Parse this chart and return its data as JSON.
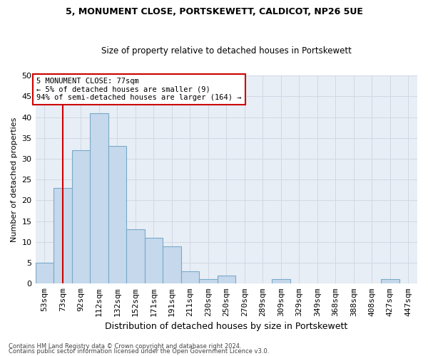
{
  "title1": "5, MONUMENT CLOSE, PORTSKEWETT, CALDICOT, NP26 5UE",
  "title2": "Size of property relative to detached houses in Portskewett",
  "xlabel": "Distribution of detached houses by size in Portskewett",
  "ylabel": "Number of detached properties",
  "categories": [
    "53sqm",
    "73sqm",
    "92sqm",
    "112sqm",
    "132sqm",
    "152sqm",
    "171sqm",
    "191sqm",
    "211sqm",
    "230sqm",
    "250sqm",
    "270sqm",
    "289sqm",
    "309sqm",
    "329sqm",
    "349sqm",
    "368sqm",
    "388sqm",
    "408sqm",
    "427sqm",
    "447sqm"
  ],
  "values": [
    5,
    23,
    32,
    41,
    33,
    13,
    11,
    9,
    3,
    1,
    2,
    0,
    0,
    1,
    0,
    0,
    0,
    0,
    0,
    1,
    0
  ],
  "bar_color": "#c5d8ec",
  "bar_edge_color": "#7aaac8",
  "vline_x": 1,
  "vline_color": "#cc0000",
  "annotation_text": "5 MONUMENT CLOSE: 77sqm\n← 5% of detached houses are smaller (9)\n94% of semi-detached houses are larger (164) →",
  "annotation_box_color": "#ffffff",
  "annotation_box_edge": "#cc0000",
  "footnote1": "Contains HM Land Registry data © Crown copyright and database right 2024.",
  "footnote2": "Contains public sector information licensed under the Open Government Licence v3.0.",
  "ylim": [
    0,
    50
  ],
  "yticks": [
    0,
    5,
    10,
    15,
    20,
    25,
    30,
    35,
    40,
    45,
    50
  ],
  "grid_color": "#d0d8e4",
  "bg_color": "#e8eef5"
}
